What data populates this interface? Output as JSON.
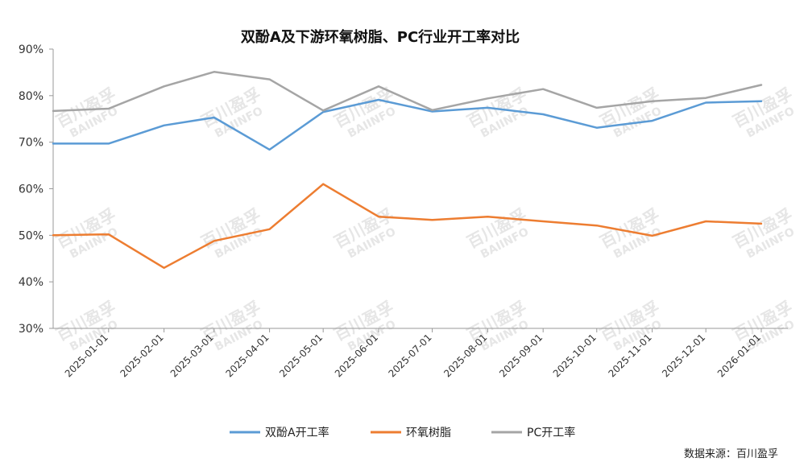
{
  "chart_data": {
    "type": "line",
    "title": "双酚A及下游环氧树脂、PC行业开工率对比",
    "x": [
      "2025-01-01",
      "2025-02-01",
      "2025-03-01",
      "2025-04-01",
      "2025-05-01",
      "2025-06-01",
      "2025-07-01",
      "2025-08-01",
      "2025-09-01",
      "2025-10-01",
      "2025-11-01",
      "2025-12-01",
      "2026-01-01"
    ],
    "y_ticks": [
      "30%",
      "40%",
      "50%",
      "60%",
      "70%",
      "80%",
      "90%"
    ],
    "ylim": [
      30,
      90
    ],
    "grid": false,
    "legend_position": "bottom",
    "series": [
      {
        "name": "双酚A开工率",
        "color": "#5b9bd5",
        "points": [
          [
            "2024-12-01",
            69.7
          ],
          [
            "2025-01-01",
            69.7
          ],
          [
            "2025-02-01",
            73.6
          ],
          [
            "2025-03-01",
            75.3
          ],
          [
            "2025-04-01",
            68.4
          ],
          [
            "2025-05-01",
            76.5
          ],
          [
            "2025-06-01",
            79.1
          ],
          [
            "2025-07-01",
            76.6
          ],
          [
            "2025-08-01",
            77.4
          ],
          [
            "2025-09-01",
            76.0
          ],
          [
            "2025-10-01",
            73.1
          ],
          [
            "2025-11-01",
            74.6
          ],
          [
            "2025-12-01",
            78.5
          ],
          [
            "2026-01-01",
            78.8
          ]
        ]
      },
      {
        "name": "环氧树脂",
        "color": "#ed7d31",
        "points": [
          [
            "2024-12-01",
            50.0
          ],
          [
            "2025-01-01",
            50.2
          ],
          [
            "2025-02-01",
            43.0
          ],
          [
            "2025-03-01",
            48.8
          ],
          [
            "2025-04-01",
            51.3
          ],
          [
            "2025-05-01",
            61.0
          ],
          [
            "2025-06-01",
            54.0
          ],
          [
            "2025-07-01",
            53.3
          ],
          [
            "2025-08-01",
            54.0
          ],
          [
            "2025-09-01",
            53.0
          ],
          [
            "2025-10-01",
            52.1
          ],
          [
            "2025-11-01",
            49.9
          ],
          [
            "2025-12-01",
            53.0
          ],
          [
            "2026-01-01",
            52.5
          ]
        ]
      },
      {
        "name": "PC开工率",
        "color": "#a5a5a5",
        "points": [
          [
            "2024-12-01",
            76.7
          ],
          [
            "2025-01-01",
            77.2
          ],
          [
            "2025-02-01",
            82.0
          ],
          [
            "2025-03-01",
            85.1
          ],
          [
            "2025-04-01",
            83.5
          ],
          [
            "2025-05-01",
            76.8
          ],
          [
            "2025-06-01",
            82.0
          ],
          [
            "2025-07-01",
            76.9
          ],
          [
            "2025-08-01",
            79.4
          ],
          [
            "2025-09-01",
            81.4
          ],
          [
            "2025-10-01",
            77.4
          ],
          [
            "2025-11-01",
            78.8
          ],
          [
            "2025-12-01",
            79.5
          ],
          [
            "2026-01-01",
            82.3
          ]
        ]
      }
    ],
    "source": "数据来源：百川盈孚",
    "watermark": {
      "cn": "百川盈孚",
      "en": "BAIINFO"
    }
  }
}
